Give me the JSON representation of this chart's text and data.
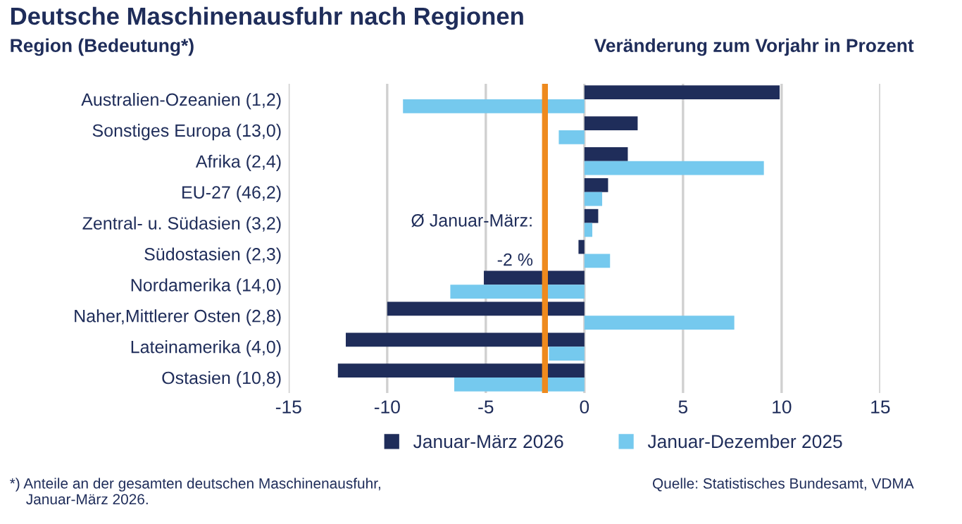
{
  "chart_data": {
    "type": "bar",
    "orientation": "horizontal",
    "title": "Deutsche Maschinenausfuhr nach Regionen",
    "ylabel": "Region (Bedeutung*)",
    "xlabel": "Veränderung zum Vorjahr in Prozent",
    "categories": [
      "Australien-Ozeanien (1,2)",
      "Sonstiges Europa (13,0)",
      "Afrika (2,4)",
      "EU-27 (46,2)",
      "Zentral- u. Südasien (3,2)",
      "Südostasien (2,3)",
      "Nordamerika (14,0)",
      "Naher,Mittlerer Osten (2,8)",
      "Lateinamerika (4,0)",
      "Ostasien (10,8)"
    ],
    "series": [
      {
        "name": "Januar-März 2026",
        "color": "#1f2d5a",
        "values": [
          9.9,
          2.7,
          2.2,
          1.2,
          0.7,
          -0.3,
          -5.1,
          -10.0,
          -12.1,
          -12.5
        ]
      },
      {
        "name": "Januar-Dezember 2025",
        "color": "#75c9ee",
        "values": [
          -9.2,
          -1.3,
          9.1,
          0.9,
          0.4,
          1.3,
          -6.8,
          7.6,
          -1.8,
          -6.6
        ]
      }
    ],
    "xlim": [
      -15,
      15
    ],
    "xticks": [
      -15,
      -10,
      -5,
      0,
      5,
      10,
      15
    ],
    "grid": "x",
    "legend": "bottom",
    "ref_lines": [
      {
        "axis": "x",
        "value": -2,
        "label": "Ø Januar-März:\n\n-2 %",
        "color": "#ee8a1e"
      }
    ],
    "annotations": [
      "*) Anteile an der gesamten deutschen Maschinenausfuhr,\n    Januar-März 2026.",
      "Quelle: Statistisches Bundesamt, VDMA"
    ]
  }
}
